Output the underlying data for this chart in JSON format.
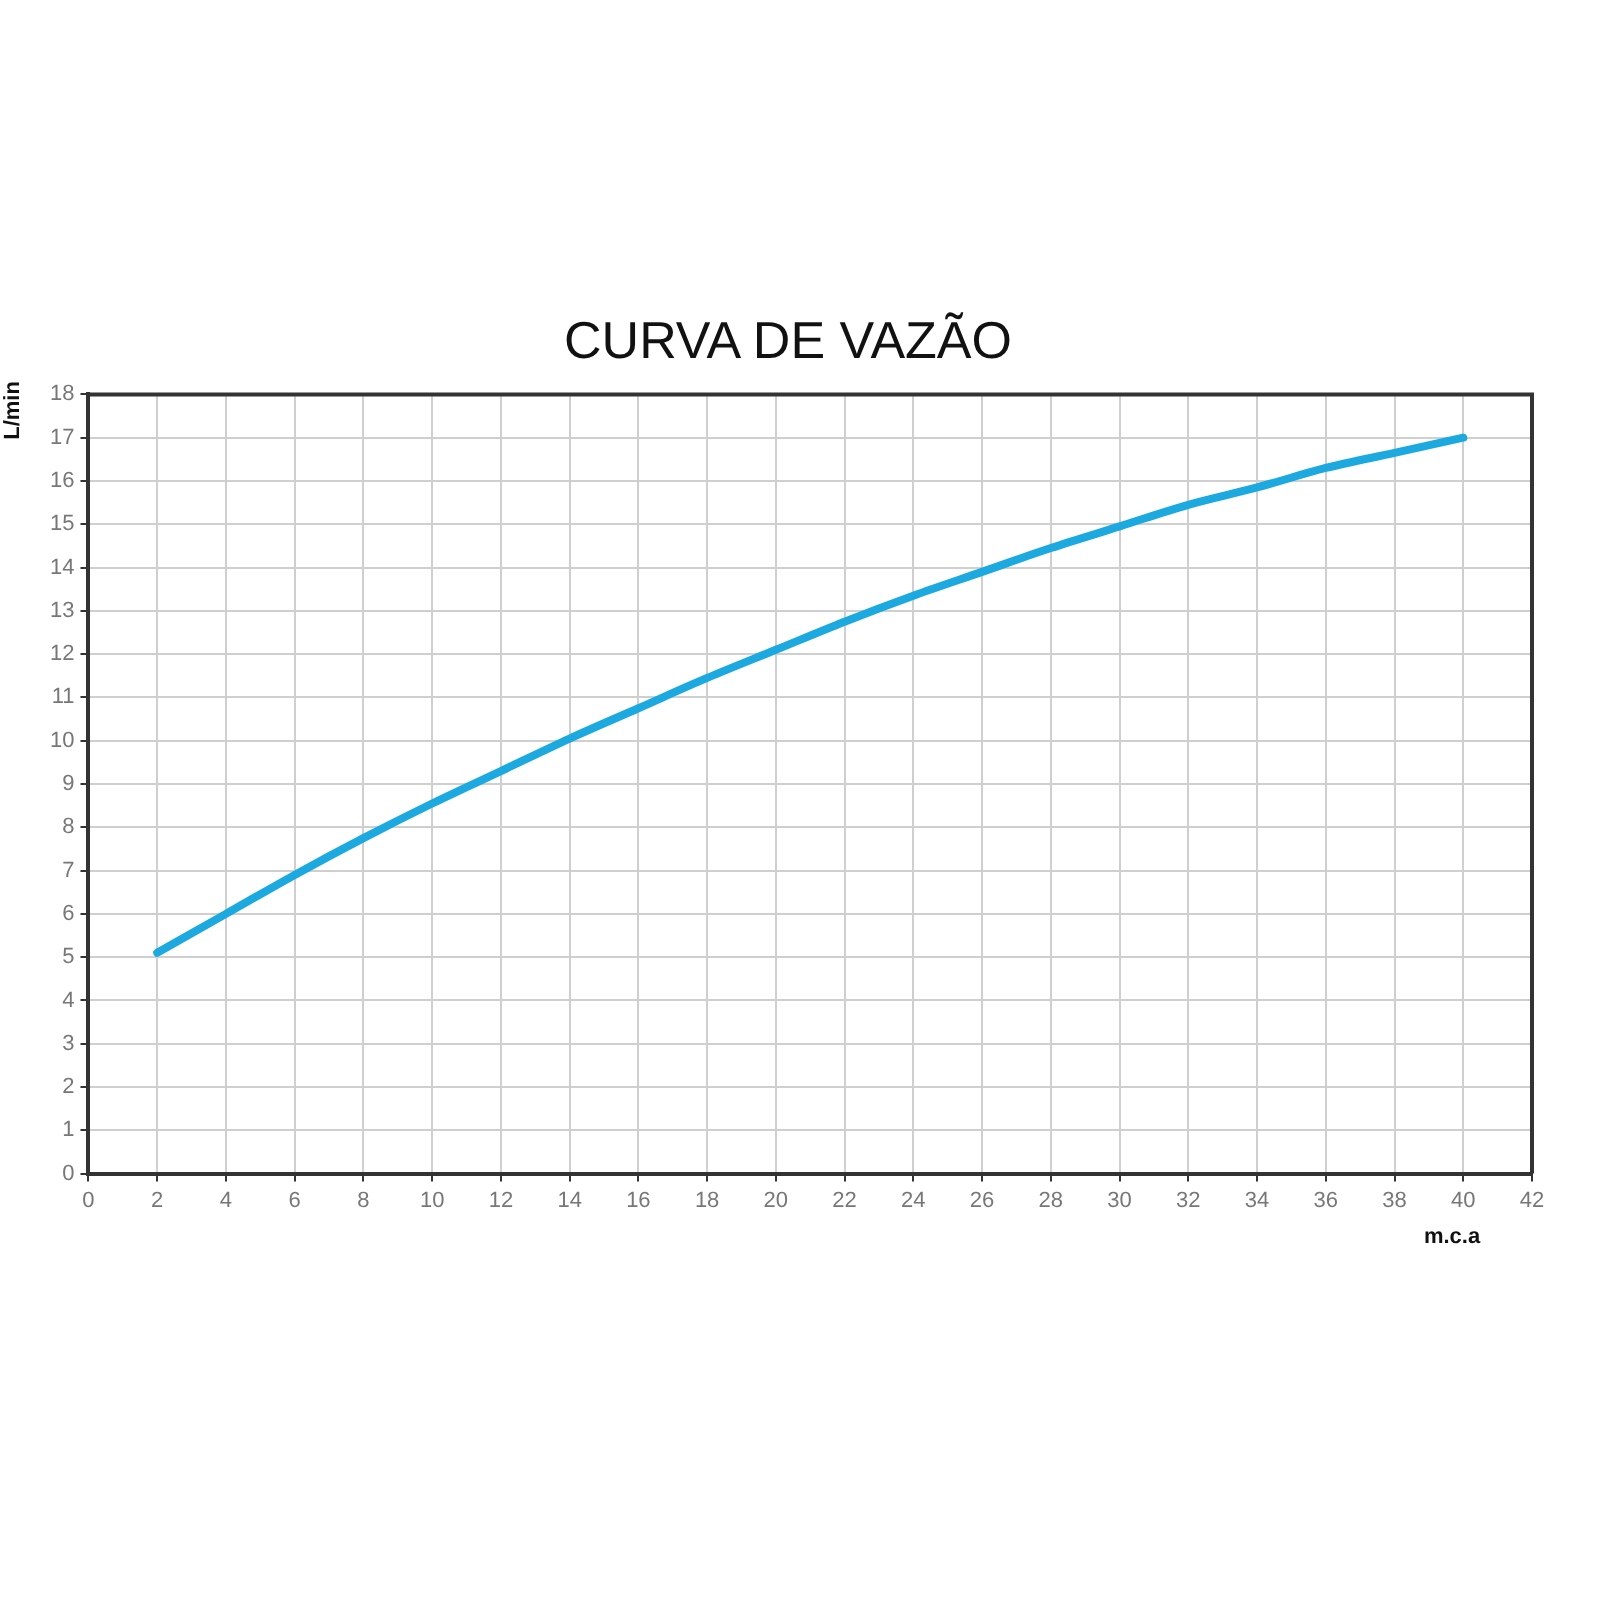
{
  "chart_data": {
    "type": "line",
    "title": "CURVA DE VAZÃO",
    "xlabel": "m.c.a",
    "ylabel": "L/min",
    "x": [
      2,
      4,
      6,
      8,
      10,
      12,
      14,
      16,
      18,
      20,
      22,
      24,
      26,
      28,
      30,
      32,
      34,
      36,
      38,
      40
    ],
    "series": [
      {
        "color": "#1ba9e0",
        "values": [
          5.1,
          6.0,
          6.9,
          7.75,
          8.55,
          9.3,
          10.05,
          10.75,
          11.45,
          12.1,
          12.75,
          13.35,
          13.9,
          14.45,
          14.95,
          15.45,
          15.85,
          16.3,
          16.65,
          17.0
        ]
      }
    ],
    "xlim": [
      0,
      42
    ],
    "xticks": [
      0,
      2,
      4,
      6,
      8,
      10,
      12,
      14,
      16,
      18,
      20,
      22,
      24,
      26,
      28,
      30,
      32,
      34,
      36,
      38,
      40,
      42
    ],
    "ylim": [
      0,
      18
    ],
    "yticks": [
      0,
      1,
      2,
      3,
      4,
      5,
      6,
      7,
      8,
      9,
      10,
      11,
      12,
      13,
      14,
      15,
      16,
      17,
      18
    ],
    "grid": true,
    "legend": false,
    "marker": "none",
    "line_style": "solid"
  }
}
